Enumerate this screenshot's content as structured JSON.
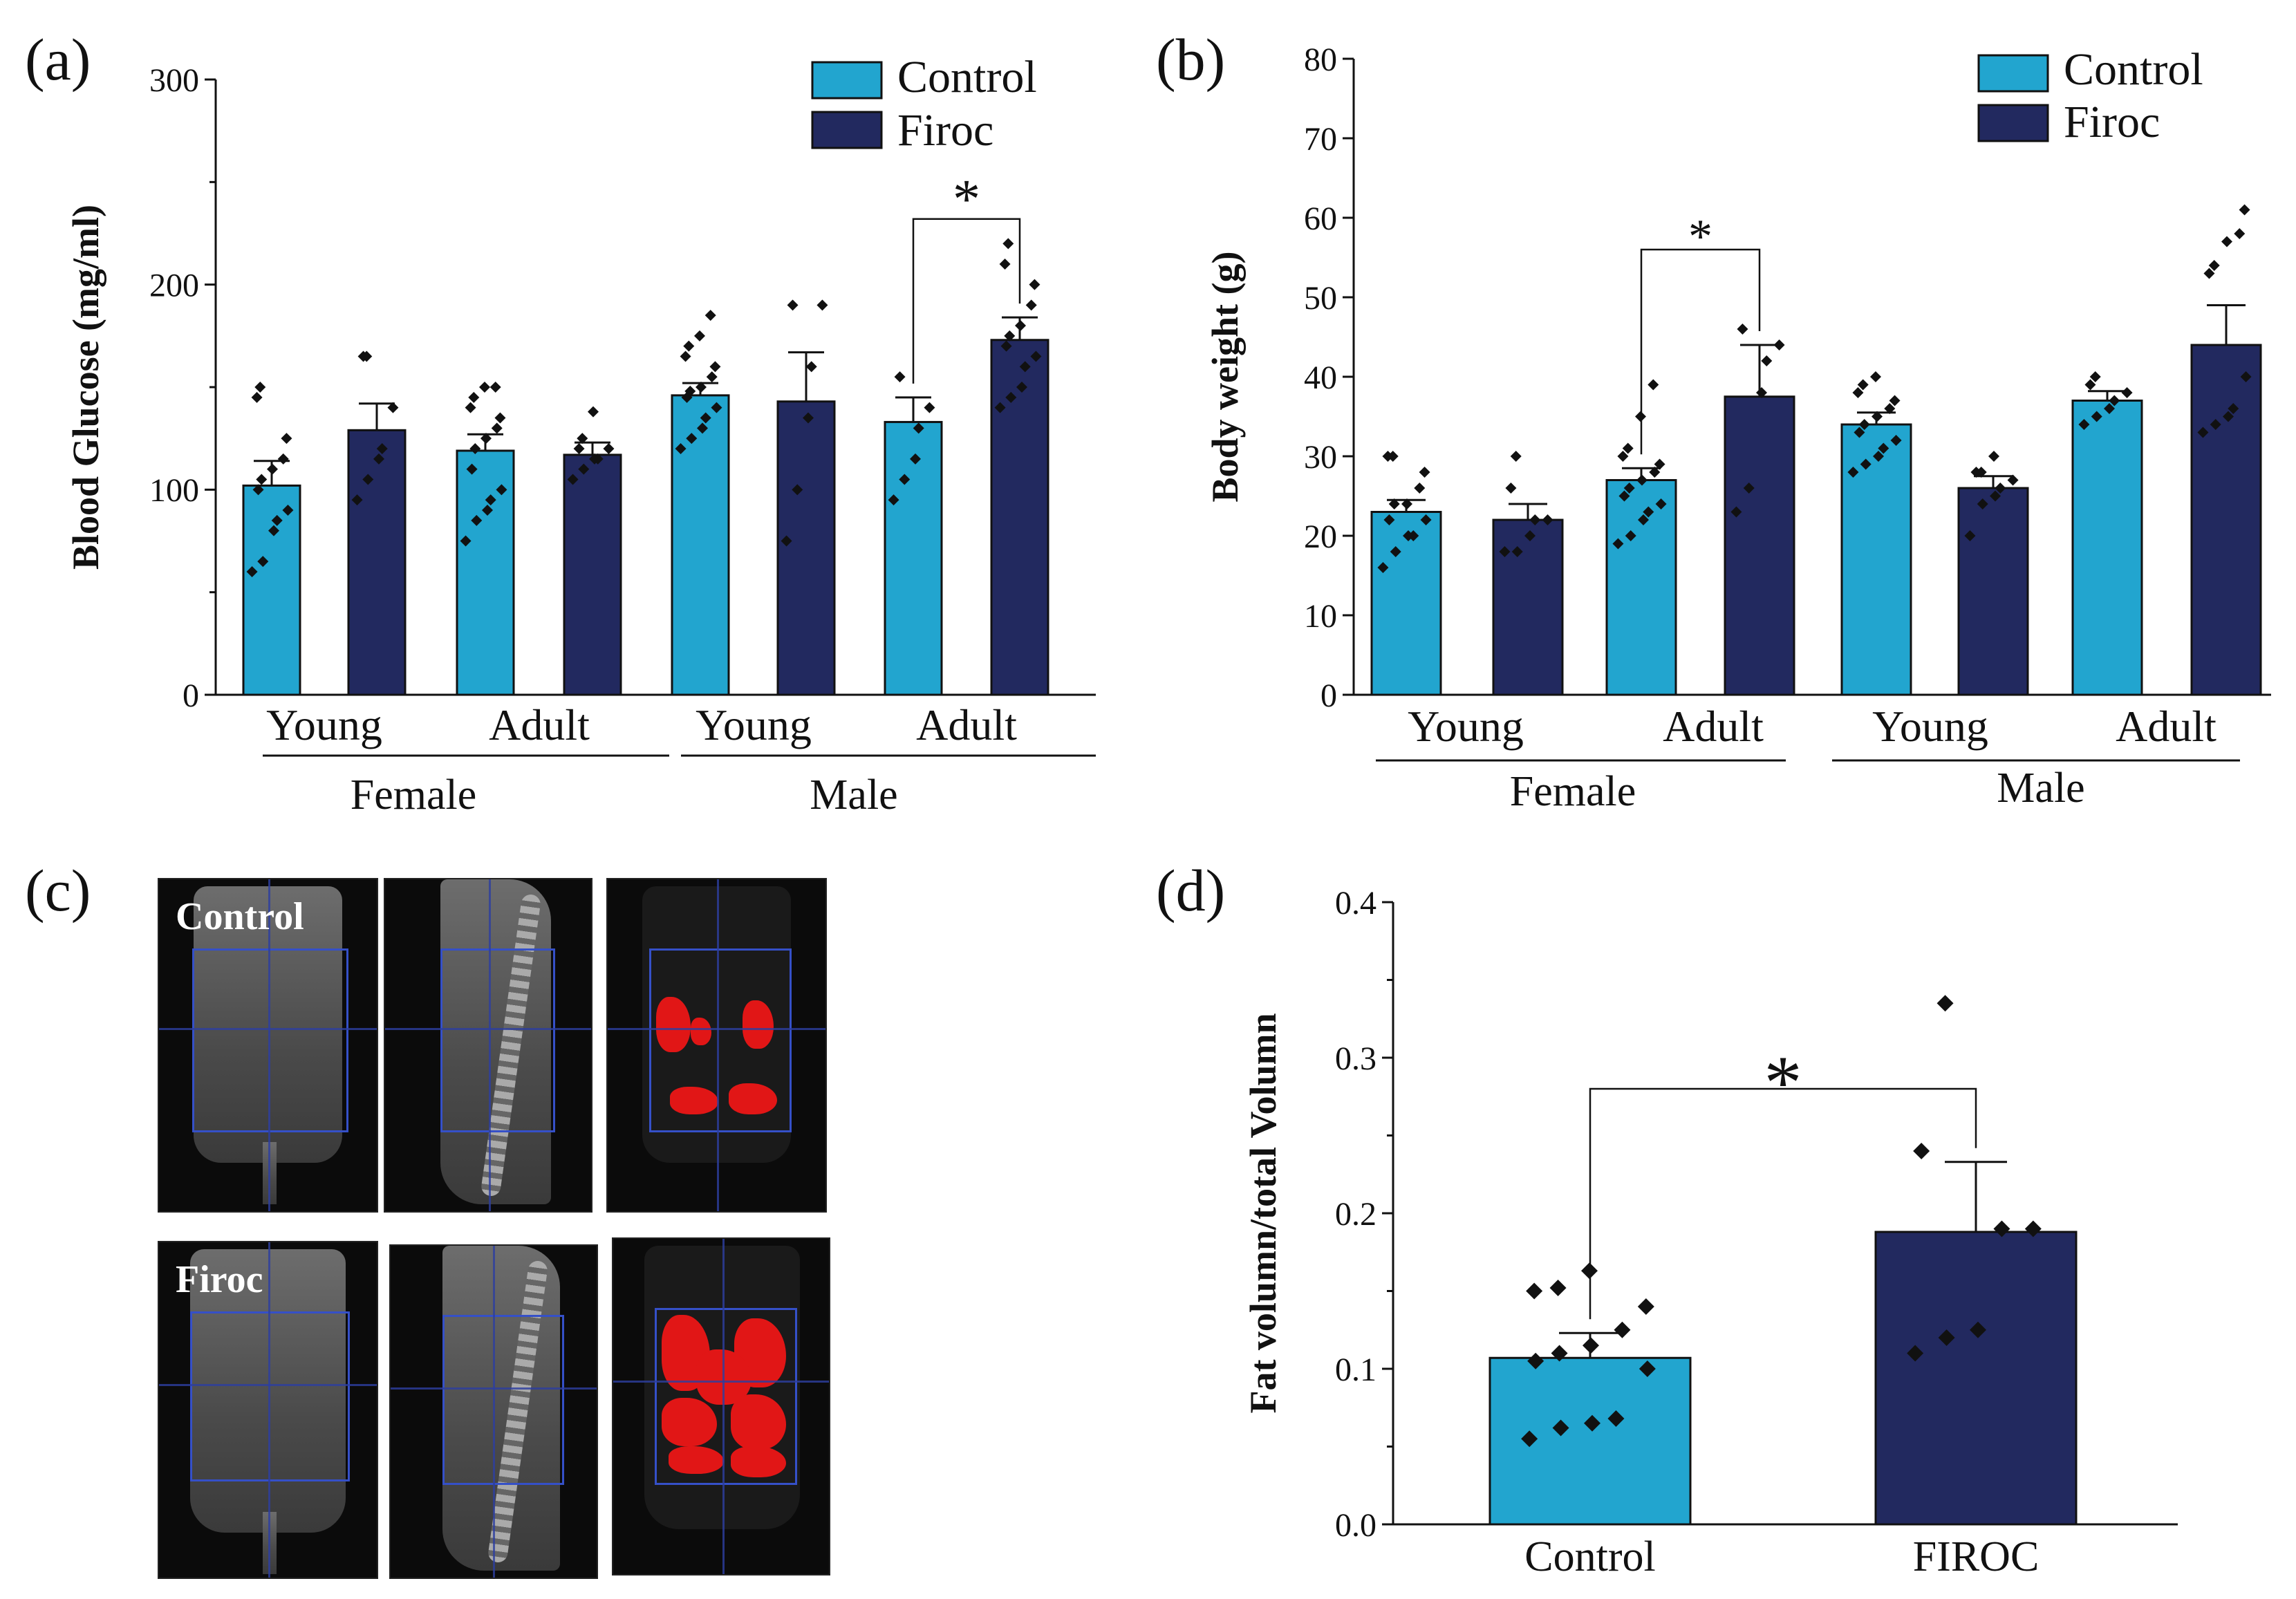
{
  "colors": {
    "control": "#22a5cf",
    "firoc": "#22295f",
    "fat": "#e11616",
    "roi": "#3550c8"
  },
  "panel_labels": {
    "a": "(a)",
    "b": "(b)",
    "c": "(c)",
    "d": "(d)"
  },
  "legend": {
    "control": "Control",
    "firoc": "Firoc"
  },
  "group_labels": {
    "young": "Young",
    "adult": "Adult",
    "female": "Female",
    "male": "Male"
  },
  "images": {
    "control_label": "Control",
    "firoc_label": "Firoc"
  },
  "chart_data": [
    {
      "id": "a",
      "type": "bar",
      "ylabel": "Blood Glucose (mg/ml)",
      "ylim": [
        0,
        300
      ],
      "yticks": [
        0,
        100,
        200,
        300
      ],
      "categories": [
        "Female Young Control",
        "Female Young Firoc",
        "Female Adult Control",
        "Female Adult Firoc",
        "Male Young Control",
        "Male Young Firoc",
        "Male Adult Control",
        "Male Adult Firoc"
      ],
      "values": [
        102,
        129,
        119,
        117,
        146,
        143,
        133,
        173
      ],
      "errors": [
        12,
        13,
        8,
        6,
        6,
        24,
        12,
        11
      ],
      "points": [
        [
          60,
          65,
          80,
          85,
          90,
          100,
          105,
          110,
          115,
          125,
          145,
          150
        ],
        [
          95,
          105,
          115,
          120,
          140,
          165,
          165
        ],
        [
          75,
          85,
          90,
          95,
          100,
          110,
          120,
          125,
          130,
          135,
          140,
          145,
          150,
          150
        ],
        [
          105,
          110,
          115,
          115,
          120,
          120,
          125,
          138
        ],
        [
          120,
          125,
          130,
          135,
          140,
          145,
          148,
          150,
          155,
          160,
          165,
          170,
          175,
          185
        ],
        [
          75,
          100,
          135,
          160,
          190,
          190
        ],
        [
          95,
          105,
          115,
          130,
          140,
          155
        ],
        [
          140,
          145,
          150,
          160,
          165,
          170,
          175,
          180,
          190,
          200,
          210,
          220
        ]
      ],
      "significance": [
        {
          "from": 6,
          "to": 7,
          "label": "*",
          "y": 232
        }
      ]
    },
    {
      "id": "b",
      "type": "bar",
      "ylabel": "Body weight (g)",
      "ylim": [
        0,
        80
      ],
      "yticks": [
        0,
        10,
        20,
        30,
        40,
        50,
        60,
        70,
        80
      ],
      "categories": [
        "Female Young Control",
        "Female Young Firoc",
        "Female Adult Control",
        "Female Adult Firoc",
        "Male Young Control",
        "Male Young Firoc",
        "Male Adult Control",
        "Male Adult Firoc"
      ],
      "values": [
        23,
        22,
        27,
        37.5,
        34,
        26,
        37,
        44
      ],
      "errors": [
        1.5,
        2,
        1.5,
        6.5,
        1.5,
        1.5,
        1.2,
        5
      ],
      "points": [
        [
          16,
          18,
          20,
          20,
          22,
          22,
          24,
          24,
          26,
          28,
          30,
          30
        ],
        [
          18,
          18,
          20,
          22,
          22,
          26,
          30
        ],
        [
          19,
          20,
          22,
          23,
          24,
          25,
          26,
          27,
          28,
          29,
          30,
          31,
          35,
          39
        ],
        [
          23,
          26,
          38,
          42,
          44,
          46
        ],
        [
          28,
          29,
          30,
          31,
          32,
          33,
          34,
          35,
          36,
          37,
          38,
          39,
          40
        ],
        [
          20,
          24,
          25,
          26,
          27,
          28,
          28,
          30
        ],
        [
          34,
          35,
          36,
          37,
          38,
          39,
          40
        ],
        [
          33,
          34,
          35,
          36,
          40,
          53,
          54,
          57,
          58,
          61
        ]
      ],
      "significance": [
        {
          "from": 2,
          "to": 3,
          "label": "*",
          "y": 56
        }
      ]
    },
    {
      "id": "d",
      "type": "bar",
      "ylabel": "Fat volumn/total Volumn",
      "ylim": [
        0,
        0.4
      ],
      "yticks": [
        0.0,
        0.1,
        0.2,
        0.3,
        0.4
      ],
      "ytick_labels": [
        "0.0",
        "0.1",
        "0.2",
        "0.3",
        "0.4"
      ],
      "categories": [
        "Control",
        "FIROC"
      ],
      "values": [
        0.107,
        0.188
      ],
      "errors": [
        0.016,
        0.045
      ],
      "points": [
        [
          0.055,
          0.062,
          0.065,
          0.068,
          0.1,
          0.105,
          0.11,
          0.115,
          0.125,
          0.14,
          0.15,
          0.152,
          0.163
        ],
        [
          0.11,
          0.12,
          0.125,
          0.19,
          0.19,
          0.24,
          0.335
        ]
      ],
      "significance": [
        {
          "from": 0,
          "to": 1,
          "label": "*",
          "y": 0.28
        }
      ]
    }
  ]
}
